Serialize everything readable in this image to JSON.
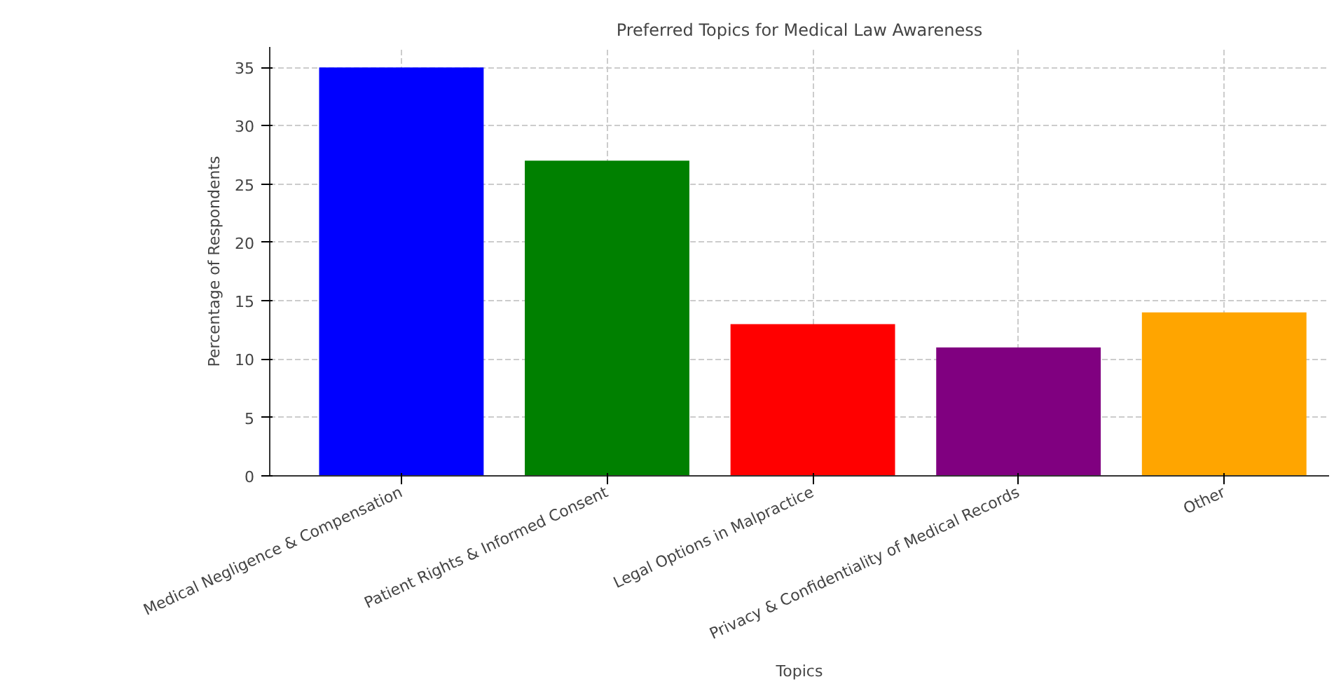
{
  "chart_data": {
    "type": "bar",
    "title": "Preferred Topics for Medical Law Awareness",
    "xlabel": "Topics",
    "ylabel": "Percentage of Respondents",
    "categories": [
      "Medical Negligence & Compensation",
      "Patient Rights & Informed Consent",
      "Legal Options in Malpractice",
      "Privacy & Confidentiality of Medical Records",
      "Other"
    ],
    "values": [
      35,
      27,
      13,
      11,
      14
    ],
    "colors": [
      "#0000ff",
      "#008000",
      "#ff0000",
      "#800080",
      "#ffa500"
    ],
    "ylim": [
      0,
      36.75
    ],
    "yticks": [
      0,
      5,
      10,
      15,
      20,
      25,
      30,
      35
    ],
    "grid": true
  }
}
